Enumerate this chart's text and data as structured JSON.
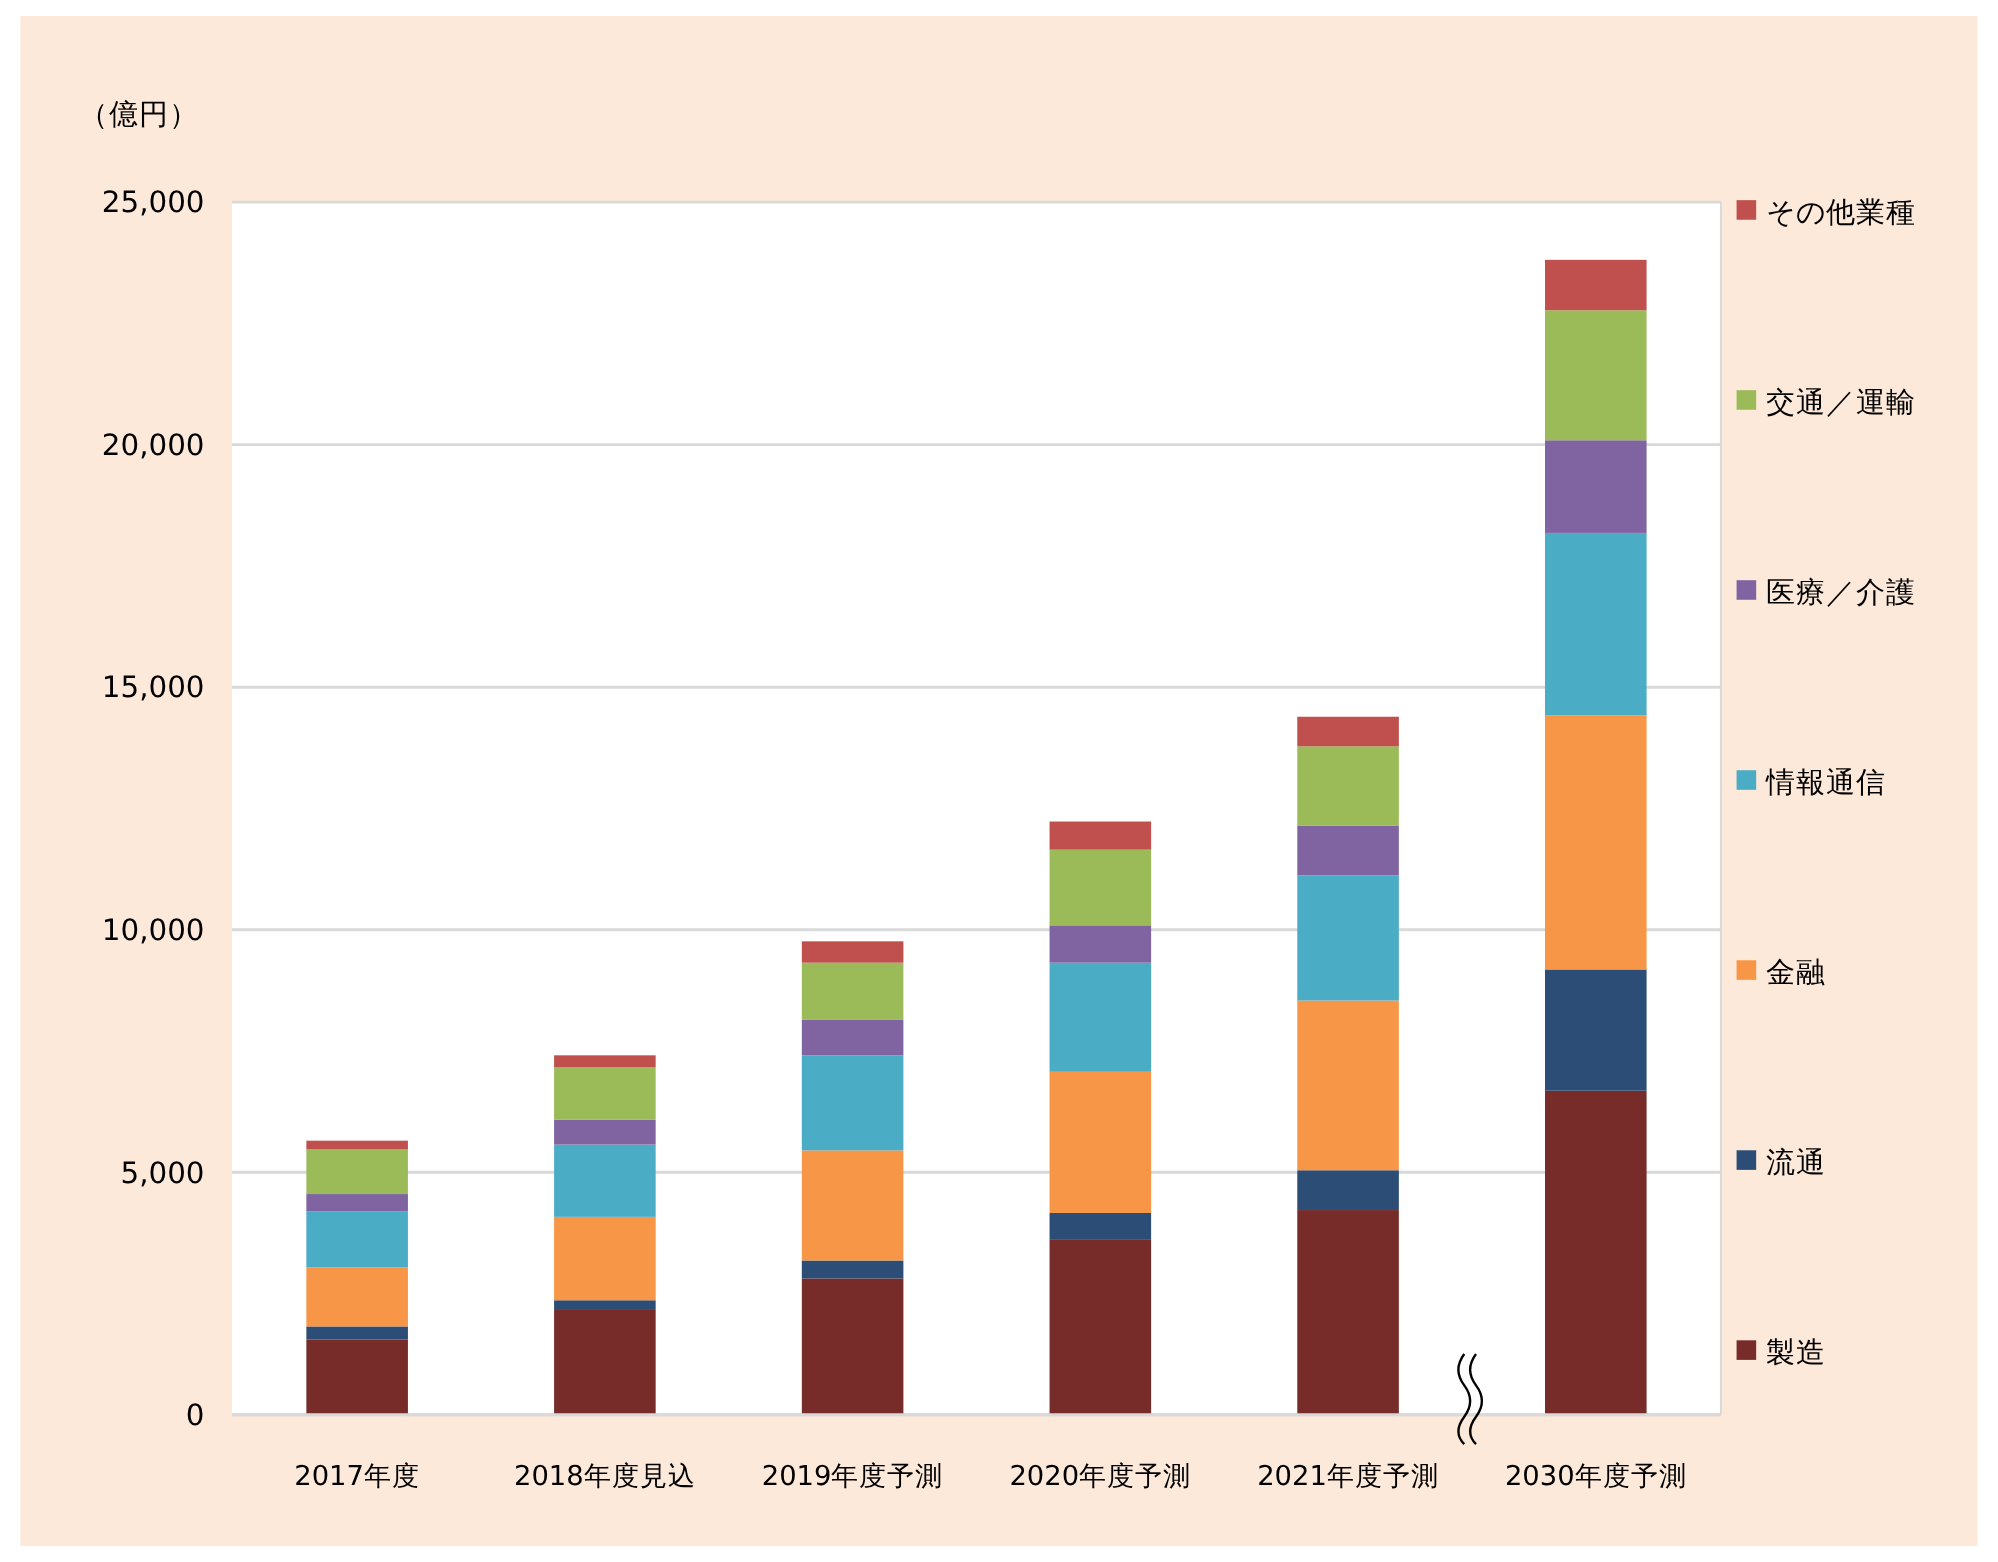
{
  "chart_data": {
    "type": "bar",
    "stacked": true,
    "ylabel": "（億円）",
    "categories": [
      "2017年度",
      "2018年度見込",
      "2019年度予測",
      "2020年度予測",
      "2021年度予測",
      "2030年度予測"
    ],
    "series": [
      {
        "name": "製造",
        "color": "#772c2a",
        "values": [
          1550,
          2160,
          2810,
          3620,
          4220,
          6680
        ]
      },
      {
        "name": "流通",
        "color": "#2c4d75",
        "values": [
          270,
          200,
          370,
          540,
          820,
          2500
        ]
      },
      {
        "name": "金融",
        "color": "#f79646",
        "values": [
          1220,
          1720,
          2270,
          2910,
          3500,
          5240
        ]
      },
      {
        "name": "情報通信",
        "color": "#4bacc6",
        "values": [
          1150,
          1490,
          1960,
          2250,
          2580,
          3760
        ]
      },
      {
        "name": "医療／介護",
        "color": "#8064a2",
        "values": [
          360,
          510,
          730,
          770,
          1020,
          1910
        ]
      },
      {
        "name": "交通／運輸",
        "color": "#9bbb59",
        "values": [
          920,
          1080,
          1180,
          1560,
          1640,
          2680
        ]
      },
      {
        "name": "その他業種",
        "color": "#c0504d",
        "values": [
          180,
          250,
          440,
          580,
          610,
          1040
        ]
      }
    ],
    "ylim": [
      0,
      25000
    ],
    "yticks": [
      0,
      {
        "value": 5000,
        "label": "5,000"
      },
      {
        "value": 10000,
        "label": "10,000"
      },
      {
        "value": 15000,
        "label": "15,000"
      },
      {
        "value": 20000,
        "label": "20,000"
      },
      {
        "value": 25000,
        "label": "25,000"
      }
    ],
    "grid": "y",
    "legend": "right"
  }
}
